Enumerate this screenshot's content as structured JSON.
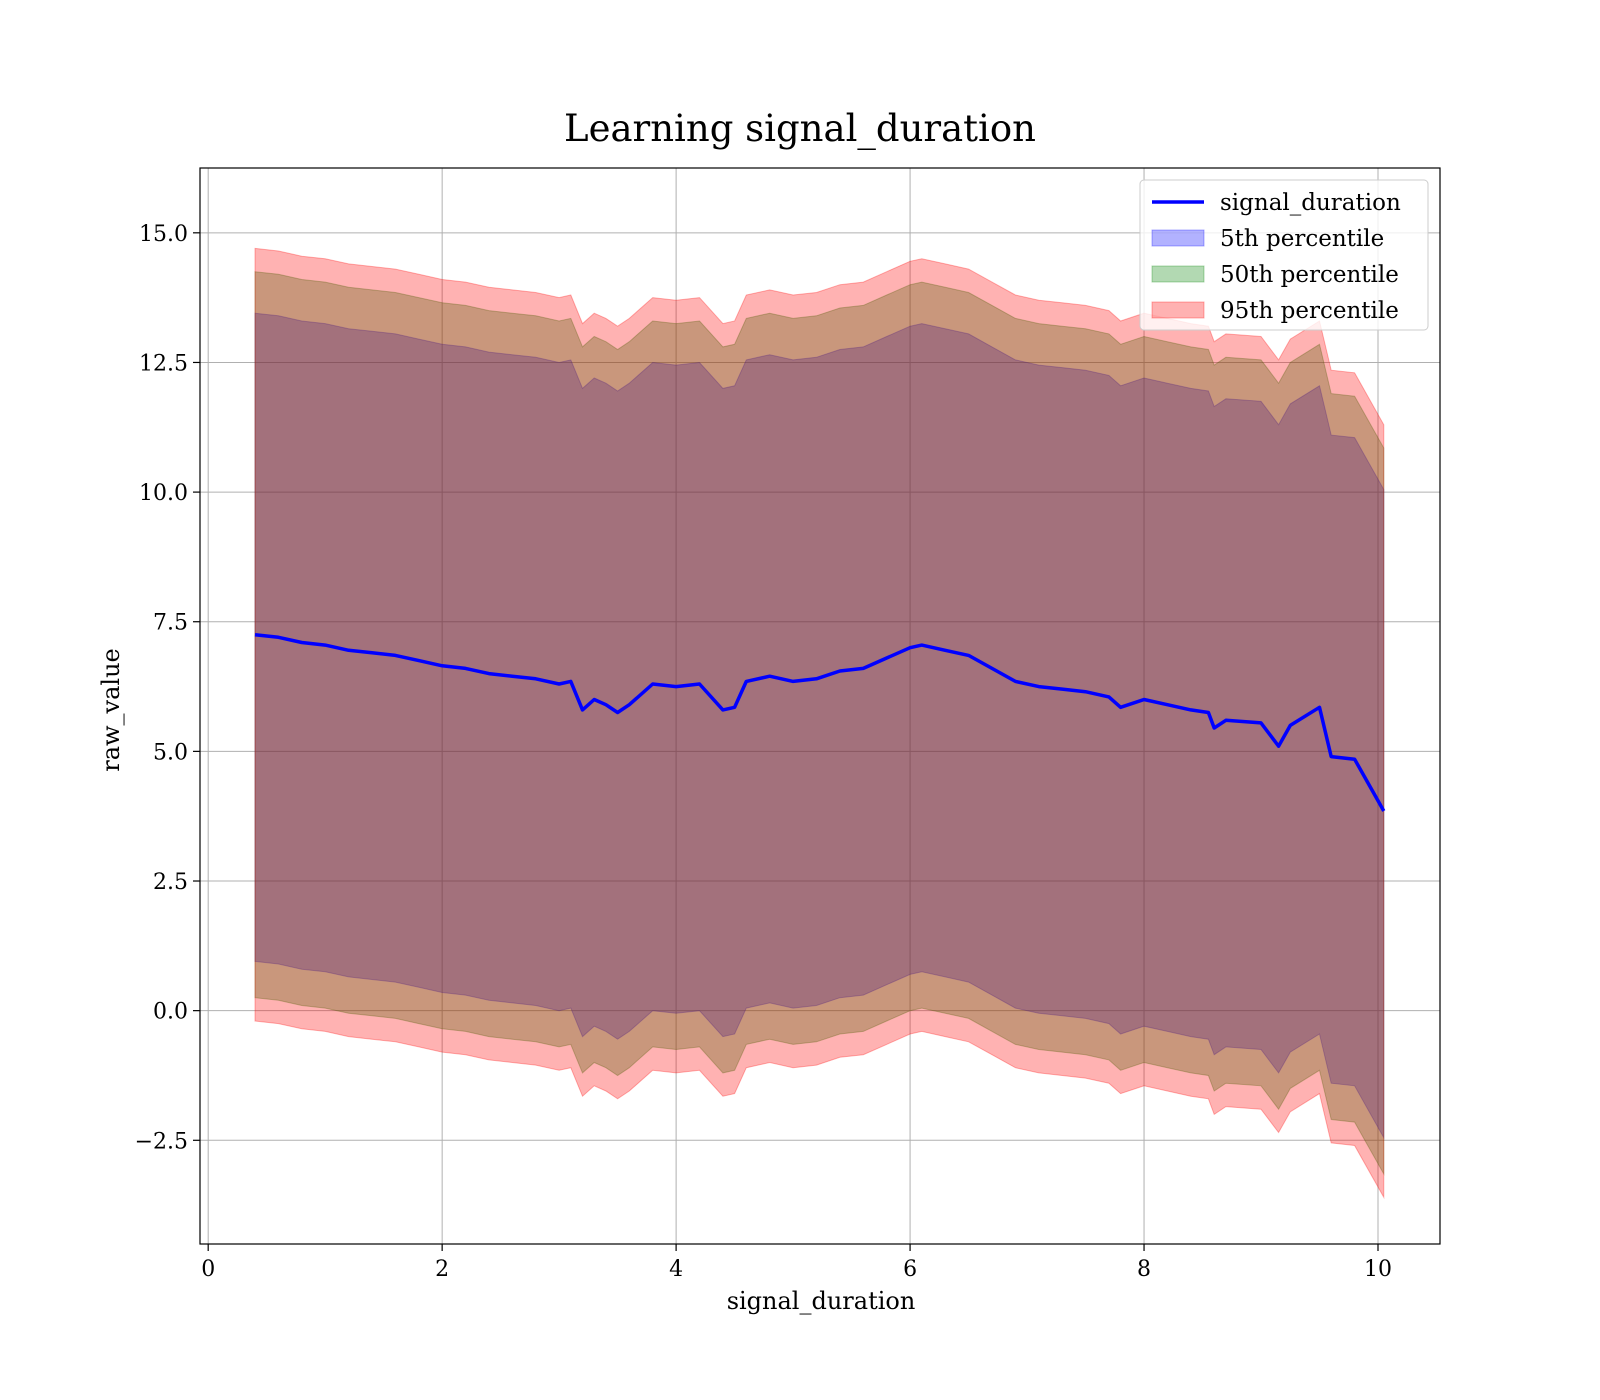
{
  "chart_data": {
    "type": "line",
    "title": "Learning signal_duration",
    "xlabel": "signal_duration",
    "ylabel": "raw_value",
    "xlim": [
      -0.07,
      10.53
    ],
    "ylim": [
      -4.5,
      16.25
    ],
    "xticks": [
      0,
      2,
      4,
      6,
      8,
      10
    ],
    "xtick_labels": [
      "0",
      "2",
      "4",
      "6",
      "8",
      "10"
    ],
    "yticks": [
      -2.5,
      0.0,
      2.5,
      5.0,
      7.5,
      10.0,
      12.5,
      15.0
    ],
    "ytick_labels": [
      "−2.5",
      "0.0",
      "2.5",
      "5.0",
      "7.5",
      "10.0",
      "12.5",
      "15.0"
    ],
    "grid": true,
    "legend_position": "top-right",
    "x": [
      0.4,
      0.6,
      0.8,
      1.0,
      1.2,
      1.4,
      1.6,
      1.8,
      2.0,
      2.2,
      2.4,
      2.6,
      2.8,
      3.0,
      3.1,
      3.2,
      3.3,
      3.4,
      3.5,
      3.6,
      3.8,
      4.0,
      4.2,
      4.4,
      4.5,
      4.6,
      4.8,
      5.0,
      5.2,
      5.4,
      5.6,
      5.8,
      6.0,
      6.1,
      6.3,
      6.5,
      6.7,
      6.9,
      7.1,
      7.3,
      7.5,
      7.7,
      7.8,
      8.0,
      8.2,
      8.4,
      8.55,
      8.6,
      8.7,
      9.0,
      9.15,
      9.25,
      9.5,
      9.6,
      9.8,
      10.05
    ],
    "series": [
      {
        "name": "signal_duration",
        "kind": "line",
        "color": "#0000ff",
        "values": [
          7.25,
          7.2,
          7.1,
          7.05,
          6.95,
          6.9,
          6.85,
          6.75,
          6.65,
          6.6,
          6.5,
          6.45,
          6.4,
          6.3,
          6.35,
          5.8,
          6.0,
          5.9,
          5.75,
          5.9,
          6.3,
          6.25,
          6.3,
          5.8,
          5.85,
          6.35,
          6.45,
          6.35,
          6.4,
          6.55,
          6.6,
          6.8,
          7.0,
          7.05,
          6.95,
          6.85,
          6.6,
          6.35,
          6.25,
          6.2,
          6.15,
          6.05,
          5.85,
          6.0,
          5.9,
          5.8,
          5.75,
          5.45,
          5.6,
          5.55,
          5.1,
          5.5,
          5.85,
          4.9,
          4.85,
          3.85
        ]
      },
      {
        "name": "5th percentile",
        "kind": "band",
        "color": "#0000ff",
        "opacity": 0.3,
        "lower": [
          0.95,
          0.9,
          0.8,
          0.75,
          0.65,
          0.6,
          0.55,
          0.45,
          0.35,
          0.3,
          0.2,
          0.15,
          0.1,
          0.0,
          0.05,
          -0.5,
          -0.3,
          -0.4,
          -0.55,
          -0.4,
          0.0,
          -0.05,
          0.0,
          -0.5,
          -0.45,
          0.05,
          0.15,
          0.05,
          0.1,
          0.25,
          0.3,
          0.5,
          0.7,
          0.75,
          0.65,
          0.55,
          0.3,
          0.05,
          -0.05,
          -0.1,
          -0.15,
          -0.25,
          -0.45,
          -0.3,
          -0.4,
          -0.5,
          -0.55,
          -0.85,
          -0.7,
          -0.75,
          -1.2,
          -0.8,
          -0.45,
          -1.4,
          -1.45,
          -2.45
        ],
        "upper": [
          13.45,
          13.4,
          13.3,
          13.25,
          13.15,
          13.1,
          13.05,
          12.95,
          12.85,
          12.8,
          12.7,
          12.65,
          12.6,
          12.5,
          12.55,
          12.0,
          12.2,
          12.1,
          11.95,
          12.1,
          12.5,
          12.45,
          12.5,
          12.0,
          12.05,
          12.55,
          12.65,
          12.55,
          12.6,
          12.75,
          12.8,
          13.0,
          13.2,
          13.25,
          13.15,
          13.05,
          12.8,
          12.55,
          12.45,
          12.4,
          12.35,
          12.25,
          12.05,
          12.2,
          12.1,
          12.0,
          11.95,
          11.65,
          11.8,
          11.75,
          11.3,
          11.7,
          12.05,
          11.1,
          11.05,
          10.05
        ]
      },
      {
        "name": "50th percentile",
        "kind": "band",
        "color": "#008000",
        "opacity": 0.3,
        "lower": [
          0.25,
          0.2,
          0.1,
          0.05,
          -0.05,
          -0.1,
          -0.15,
          -0.25,
          -0.35,
          -0.4,
          -0.5,
          -0.55,
          -0.6,
          -0.7,
          -0.65,
          -1.2,
          -1.0,
          -1.1,
          -1.25,
          -1.1,
          -0.7,
          -0.75,
          -0.7,
          -1.2,
          -1.15,
          -0.65,
          -0.55,
          -0.65,
          -0.6,
          -0.45,
          -0.4,
          -0.2,
          0.0,
          0.05,
          -0.05,
          -0.15,
          -0.4,
          -0.65,
          -0.75,
          -0.8,
          -0.85,
          -0.95,
          -1.15,
          -1.0,
          -1.1,
          -1.2,
          -1.25,
          -1.55,
          -1.4,
          -1.45,
          -1.9,
          -1.5,
          -1.15,
          -2.1,
          -2.15,
          -3.15
        ],
        "upper": [
          14.25,
          14.2,
          14.1,
          14.05,
          13.95,
          13.9,
          13.85,
          13.75,
          13.65,
          13.6,
          13.5,
          13.45,
          13.4,
          13.3,
          13.35,
          12.8,
          13.0,
          12.9,
          12.75,
          12.9,
          13.3,
          13.25,
          13.3,
          12.8,
          12.85,
          13.35,
          13.45,
          13.35,
          13.4,
          13.55,
          13.6,
          13.8,
          14.0,
          14.05,
          13.95,
          13.85,
          13.6,
          13.35,
          13.25,
          13.2,
          13.15,
          13.05,
          12.85,
          13.0,
          12.9,
          12.8,
          12.75,
          12.45,
          12.6,
          12.55,
          12.1,
          12.5,
          12.85,
          11.9,
          11.85,
          10.85
        ]
      },
      {
        "name": "95th percentile",
        "kind": "band",
        "color": "#ff0000",
        "opacity": 0.3,
        "lower": [
          -0.2,
          -0.25,
          -0.35,
          -0.4,
          -0.5,
          -0.55,
          -0.6,
          -0.7,
          -0.8,
          -0.85,
          -0.95,
          -1.0,
          -1.05,
          -1.15,
          -1.1,
          -1.65,
          -1.45,
          -1.55,
          -1.7,
          -1.55,
          -1.15,
          -1.2,
          -1.15,
          -1.65,
          -1.6,
          -1.1,
          -1.0,
          -1.1,
          -1.05,
          -0.9,
          -0.85,
          -0.65,
          -0.45,
          -0.4,
          -0.5,
          -0.6,
          -0.85,
          -1.1,
          -1.2,
          -1.25,
          -1.3,
          -1.4,
          -1.6,
          -1.45,
          -1.55,
          -1.65,
          -1.7,
          -2.0,
          -1.85,
          -1.9,
          -2.35,
          -1.95,
          -1.6,
          -2.55,
          -2.6,
          -3.6
        ],
        "upper": [
          14.7,
          14.65,
          14.55,
          14.5,
          14.4,
          14.35,
          14.3,
          14.2,
          14.1,
          14.05,
          13.95,
          13.9,
          13.85,
          13.75,
          13.8,
          13.25,
          13.45,
          13.35,
          13.2,
          13.35,
          13.75,
          13.7,
          13.75,
          13.25,
          13.3,
          13.8,
          13.9,
          13.8,
          13.85,
          14.0,
          14.05,
          14.25,
          14.45,
          14.5,
          14.4,
          14.3,
          14.05,
          13.8,
          13.7,
          13.65,
          13.6,
          13.5,
          13.3,
          13.45,
          13.35,
          13.25,
          13.2,
          12.9,
          13.05,
          13.0,
          12.55,
          12.95,
          13.3,
          12.35,
          12.3,
          11.3
        ]
      }
    ]
  }
}
